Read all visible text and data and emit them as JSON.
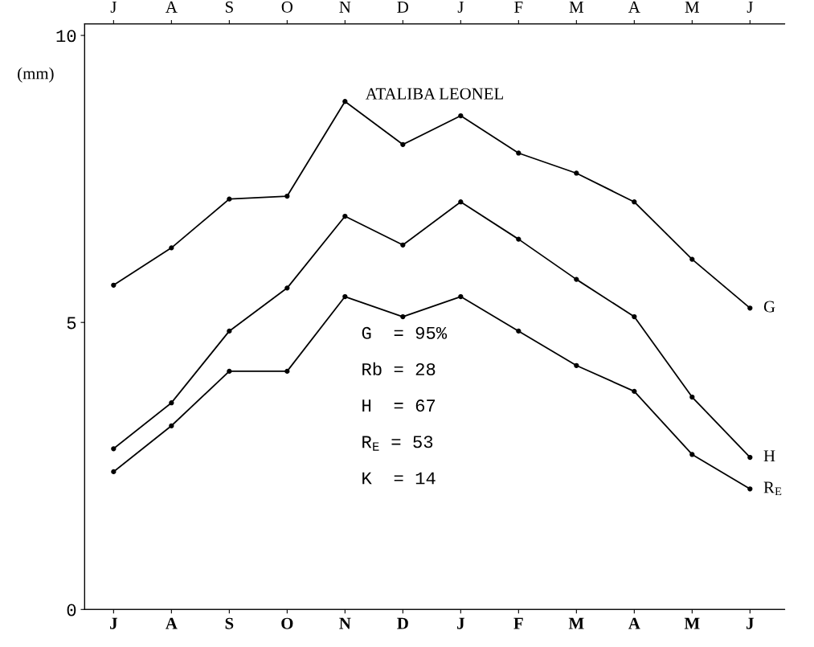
{
  "chart_data": {
    "type": "line",
    "title": "ATALIBA LEONEL",
    "ylabel": "(mm)",
    "categories": [
      "J",
      "A",
      "S",
      "O",
      "N",
      "D",
      "J",
      "F",
      "M",
      "A",
      "M",
      "J"
    ],
    "series": [
      {
        "name": "G",
        "color": "#000000",
        "values": [
          5.65,
          6.3,
          7.15,
          7.2,
          8.85,
          8.1,
          8.6,
          7.95,
          7.6,
          7.1,
          6.1,
          5.25
        ]
      },
      {
        "name": "H",
        "color": "#000000",
        "values": [
          2.8,
          3.6,
          4.85,
          5.6,
          6.85,
          6.35,
          7.1,
          6.45,
          5.75,
          5.1,
          3.7,
          2.65
        ]
      },
      {
        "name": "R$_{E}$",
        "color": "#000000",
        "values": [
          2.4,
          3.2,
          4.15,
          4.15,
          5.45,
          5.1,
          5.45,
          4.85,
          4.25,
          3.8,
          2.7,
          2.1
        ]
      }
    ],
    "ylim": [
      0,
      10.2
    ],
    "yticks": [
      0,
      5,
      10
    ],
    "annotations": [
      "G  = 95%",
      "Rb = 28",
      "H  = 67",
      "R$_{E}$ = 53",
      "K  = 14"
    ],
    "marker": "circle",
    "line_style": "solid",
    "grid": false,
    "legend": false
  }
}
